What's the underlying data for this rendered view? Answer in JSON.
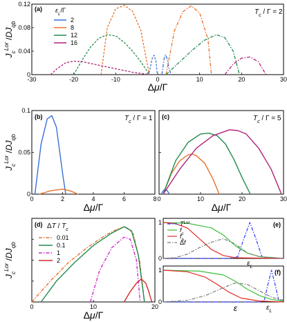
{
  "chart_data": [
    {
      "panel": "(a)",
      "type": "line",
      "annotation": "T_c / Γ = 2",
      "xlabel": "Δμ/Γ",
      "ylabel": "J_c^Lor / DJ_qb",
      "xlim": [
        -30,
        30
      ],
      "ylim": [
        0,
        0.12
      ],
      "xticks": [
        -30,
        -20,
        -10,
        0,
        10,
        20,
        30
      ],
      "yticks": [
        0,
        0.04,
        0.08,
        0.12
      ],
      "legend_title": "ε_L / Γ",
      "series": [
        {
          "name": "2",
          "color": "#3a6fd8",
          "dashed": {
            "x": [
              -2.8,
              -2.0,
              -1.6,
              -1.2,
              -0.8,
              -0.4,
              -0.1
            ],
            "y": [
              0.0,
              0.004,
              0.018,
              0.03,
              0.033,
              0.022,
              0.0
            ]
          },
          "solid": {
            "x": [
              1.0,
              1.2,
              1.6,
              1.9,
              2.3,
              2.7,
              3.2
            ],
            "y": [
              0.0,
              0.01,
              0.03,
              0.034,
              0.026,
              0.01,
              0.0
            ]
          }
        },
        {
          "name": "8",
          "color": "#e8702a",
          "dashed": {
            "x": [
              -13.5,
              -12,
              -10,
              -8,
              -6,
              -4,
              -2
            ],
            "y": [
              0.0,
              0.08,
              0.112,
              0.118,
              0.108,
              0.075,
              0.0
            ]
          },
          "solid": {
            "x": [
              2,
              4,
              6,
              8,
              10,
              12,
              12.8
            ],
            "y": [
              0.0,
              0.075,
              0.107,
              0.117,
              0.105,
              0.06,
              0.0
            ]
          }
        },
        {
          "name": "12",
          "color": "#228b4e",
          "dashed": {
            "x": [
              -20,
              -18,
              -16,
              -14,
              -12,
              -10,
              -8,
              -6,
              -4,
              -2
            ],
            "y": [
              0.0,
              0.025,
              0.047,
              0.062,
              0.068,
              0.066,
              0.055,
              0.04,
              0.022,
              0.0
            ]
          },
          "solid": {
            "x": [
              2,
              5,
              8,
              11,
              14,
              16,
              18,
              19.5
            ],
            "y": [
              0.0,
              0.02,
              0.04,
              0.058,
              0.068,
              0.063,
              0.04,
              0.0
            ]
          }
        },
        {
          "name": "16",
          "color": "#b0207a",
          "dashed": {
            "x": [
              -25.5,
              -24,
              -22,
              -20,
              -18,
              -16,
              -14,
              -12,
              -10,
              -8,
              -6,
              -4,
              -2
            ],
            "y": [
              0.0,
              0.01,
              0.02,
              0.023,
              0.022,
              0.019,
              0.016,
              0.013,
              0.01,
              0.007,
              0.004,
              0.002,
              0.0
            ]
          },
          "solid": {
            "x": [
              16,
              18,
              20,
              22,
              24,
              25.8
            ],
            "y": [
              0.0,
              0.018,
              0.028,
              0.03,
              0.022,
              0.0
            ]
          }
        }
      ]
    },
    {
      "panel": "(b)",
      "type": "line",
      "annotation": "T_c / Γ = 1",
      "xlabel": "Δμ/Γ",
      "ylabel": "J_c^Lor / DJ_qb",
      "xlim": [
        0,
        8
      ],
      "ylim": [
        0,
        0.1
      ],
      "xticks": [
        0,
        2,
        4,
        6,
        8
      ],
      "yticks": [
        0,
        0.05,
        0.1
      ],
      "series": [
        {
          "name": "2",
          "color": "#3a6fd8",
          "x": [
            0.2,
            0.6,
            1.0,
            1.3,
            1.6,
            2.0,
            2.2
          ],
          "y": [
            0.0,
            0.06,
            0.09,
            0.094,
            0.08,
            0.025,
            0.0
          ]
        },
        {
          "name": "8",
          "color": "#e8702a",
          "x": [
            0.5,
            1.2,
            2.0,
            2.5,
            3.0
          ],
          "y": [
            0.0,
            0.004,
            0.006,
            0.004,
            0.0
          ]
        }
      ]
    },
    {
      "panel": "(c)",
      "type": "line",
      "annotation": "T_c / Γ = 5",
      "xlabel": "Δμ/Γ",
      "xlim": [
        0,
        30
      ],
      "ylim": [
        0,
        0.1
      ],
      "xticks": [
        0,
        10,
        20,
        30
      ],
      "series": [
        {
          "name": "2",
          "color": "#3a6fd8",
          "x": [
            0.5,
            1.0,
            1.5,
            2.0,
            2.5
          ],
          "y": [
            0.0,
            0.004,
            0.006,
            0.004,
            0.0
          ]
        },
        {
          "name": "8",
          "color": "#e8702a",
          "x": [
            1,
            3,
            5,
            7,
            8,
            9,
            11,
            13,
            14.5
          ],
          "y": [
            0.0,
            0.025,
            0.04,
            0.047,
            0.048,
            0.046,
            0.037,
            0.018,
            0.0
          ]
        },
        {
          "name": "12",
          "color": "#228b4e",
          "x": [
            1,
            4,
            7,
            10,
            12,
            14,
            16,
            18,
            20,
            22
          ],
          "y": [
            0.0,
            0.04,
            0.062,
            0.072,
            0.073,
            0.07,
            0.06,
            0.042,
            0.02,
            0.0
          ]
        },
        {
          "name": "16",
          "color": "#b0207a",
          "x": [
            1,
            5,
            9,
            13,
            17,
            19,
            21,
            24,
            27,
            29.5
          ],
          "y": [
            0.0,
            0.03,
            0.055,
            0.07,
            0.077,
            0.076,
            0.072,
            0.055,
            0.03,
            0.0
          ]
        }
      ]
    },
    {
      "panel": "(d)",
      "type": "line",
      "xlabel": "Δμ/Γ",
      "ylabel": "J_c^Lor / DJ_qb",
      "xlim": [
        0,
        20
      ],
      "ylim": [
        0,
        0.08
      ],
      "xticks": [
        0,
        10,
        20
      ],
      "legend_title": "ΔT / T_c",
      "series": [
        {
          "name": "0.01",
          "color": "#e8702a",
          "style": "dashdot",
          "x": [
            0,
            3,
            6,
            9,
            12,
            14,
            15.3,
            16.5,
            17.5,
            18.3
          ],
          "y": [
            0.0,
            0.02,
            0.038,
            0.052,
            0.064,
            0.07,
            0.072,
            0.065,
            0.04,
            0.0
          ]
        },
        {
          "name": "0.1",
          "color": "#228b4e",
          "style": "solid",
          "x": [
            1.5,
            4,
            7,
            10,
            13,
            15,
            16.2,
            17.3,
            18.3
          ],
          "y": [
            0.0,
            0.02,
            0.038,
            0.054,
            0.066,
            0.072,
            0.068,
            0.045,
            0.0
          ]
        },
        {
          "name": "1",
          "color": "#d02ad0",
          "style": "dashdot",
          "x": [
            9.5,
            11,
            13,
            15,
            16,
            17,
            17.6
          ],
          "y": [
            0.0,
            0.03,
            0.052,
            0.062,
            0.06,
            0.04,
            0.0
          ]
        },
        {
          "name": "2",
          "color": "#d42a2a",
          "style": "solid",
          "x": [
            15,
            16,
            17,
            17.8,
            18.5,
            19,
            19.5
          ],
          "y": [
            0.0,
            0.01,
            0.018,
            0.022,
            0.018,
            0.01,
            0.0
          ]
        }
      ]
    },
    {
      "panel": "(e)",
      "type": "line",
      "xlabel": "ε_L",
      "series": [
        {
          "name": "T^Lor",
          "color": "#2a3aff",
          "style": "dashdot",
          "x": [
            0,
            0.55,
            0.62,
            0.67,
            0.72,
            0.77,
            0.82,
            0.9,
            1
          ],
          "y": [
            0,
            0,
            0.05,
            0.55,
            1.0,
            0.55,
            0.05,
            0,
            0
          ]
        },
        {
          "name": "f_c",
          "color": "#3abf3a",
          "style": "solid",
          "x": [
            0,
            0.2,
            0.4,
            0.5,
            0.6,
            0.7,
            0.8,
            1
          ],
          "y": [
            1,
            0.98,
            0.85,
            0.65,
            0.35,
            0.15,
            0.05,
            0
          ]
        },
        {
          "name": "f_h",
          "color": "#e02a2a",
          "style": "solid",
          "x": [
            0,
            0.1,
            0.2,
            0.3,
            0.4,
            0.5,
            0.6,
            1
          ],
          "y": [
            1,
            0.97,
            0.85,
            0.55,
            0.25,
            0.08,
            0.02,
            0
          ]
        },
        {
          "name": "Δf",
          "color": "#7a7a7a",
          "style": "dashdot",
          "x": [
            0,
            0.1,
            0.2,
            0.3,
            0.4,
            0.5,
            0.6,
            0.7,
            0.8,
            1
          ],
          "y": [
            0,
            0.02,
            0.12,
            0.3,
            0.45,
            0.55,
            0.4,
            0.15,
            0.05,
            0
          ]
        }
      ]
    },
    {
      "panel": "(f)",
      "type": "line",
      "xlabel": "ε",
      "x_markers": [
        "ε",
        "ε_L"
      ],
      "series": [
        {
          "name": "T^Lor",
          "color": "#2a3aff",
          "style": "dashdot",
          "x": [
            0,
            0.8,
            0.84,
            0.87,
            0.9,
            0.93,
            0.96,
            1
          ],
          "y": [
            0,
            0,
            0.05,
            0.55,
            1.0,
            0.55,
            0.05,
            0
          ]
        },
        {
          "name": "f_c",
          "color": "#3abf3a",
          "style": "solid",
          "x": [
            0,
            0.3,
            0.5,
            0.6,
            0.7,
            0.8,
            0.9,
            1
          ],
          "y": [
            1,
            0.97,
            0.85,
            0.65,
            0.4,
            0.2,
            0.08,
            0.03
          ]
        },
        {
          "name": "f_h",
          "color": "#e02a2a",
          "style": "solid",
          "x": [
            0,
            0.2,
            0.35,
            0.45,
            0.55,
            0.65,
            0.8,
            1
          ],
          "y": [
            1,
            0.95,
            0.78,
            0.55,
            0.3,
            0.12,
            0.03,
            0
          ]
        },
        {
          "name": "Δf",
          "color": "#7a7a7a",
          "style": "dashdot",
          "x": [
            0,
            0.2,
            0.35,
            0.5,
            0.6,
            0.7,
            0.8,
            0.9,
            1
          ],
          "y": [
            0,
            0.05,
            0.2,
            0.45,
            0.6,
            0.55,
            0.35,
            0.15,
            0.05
          ]
        }
      ]
    }
  ]
}
